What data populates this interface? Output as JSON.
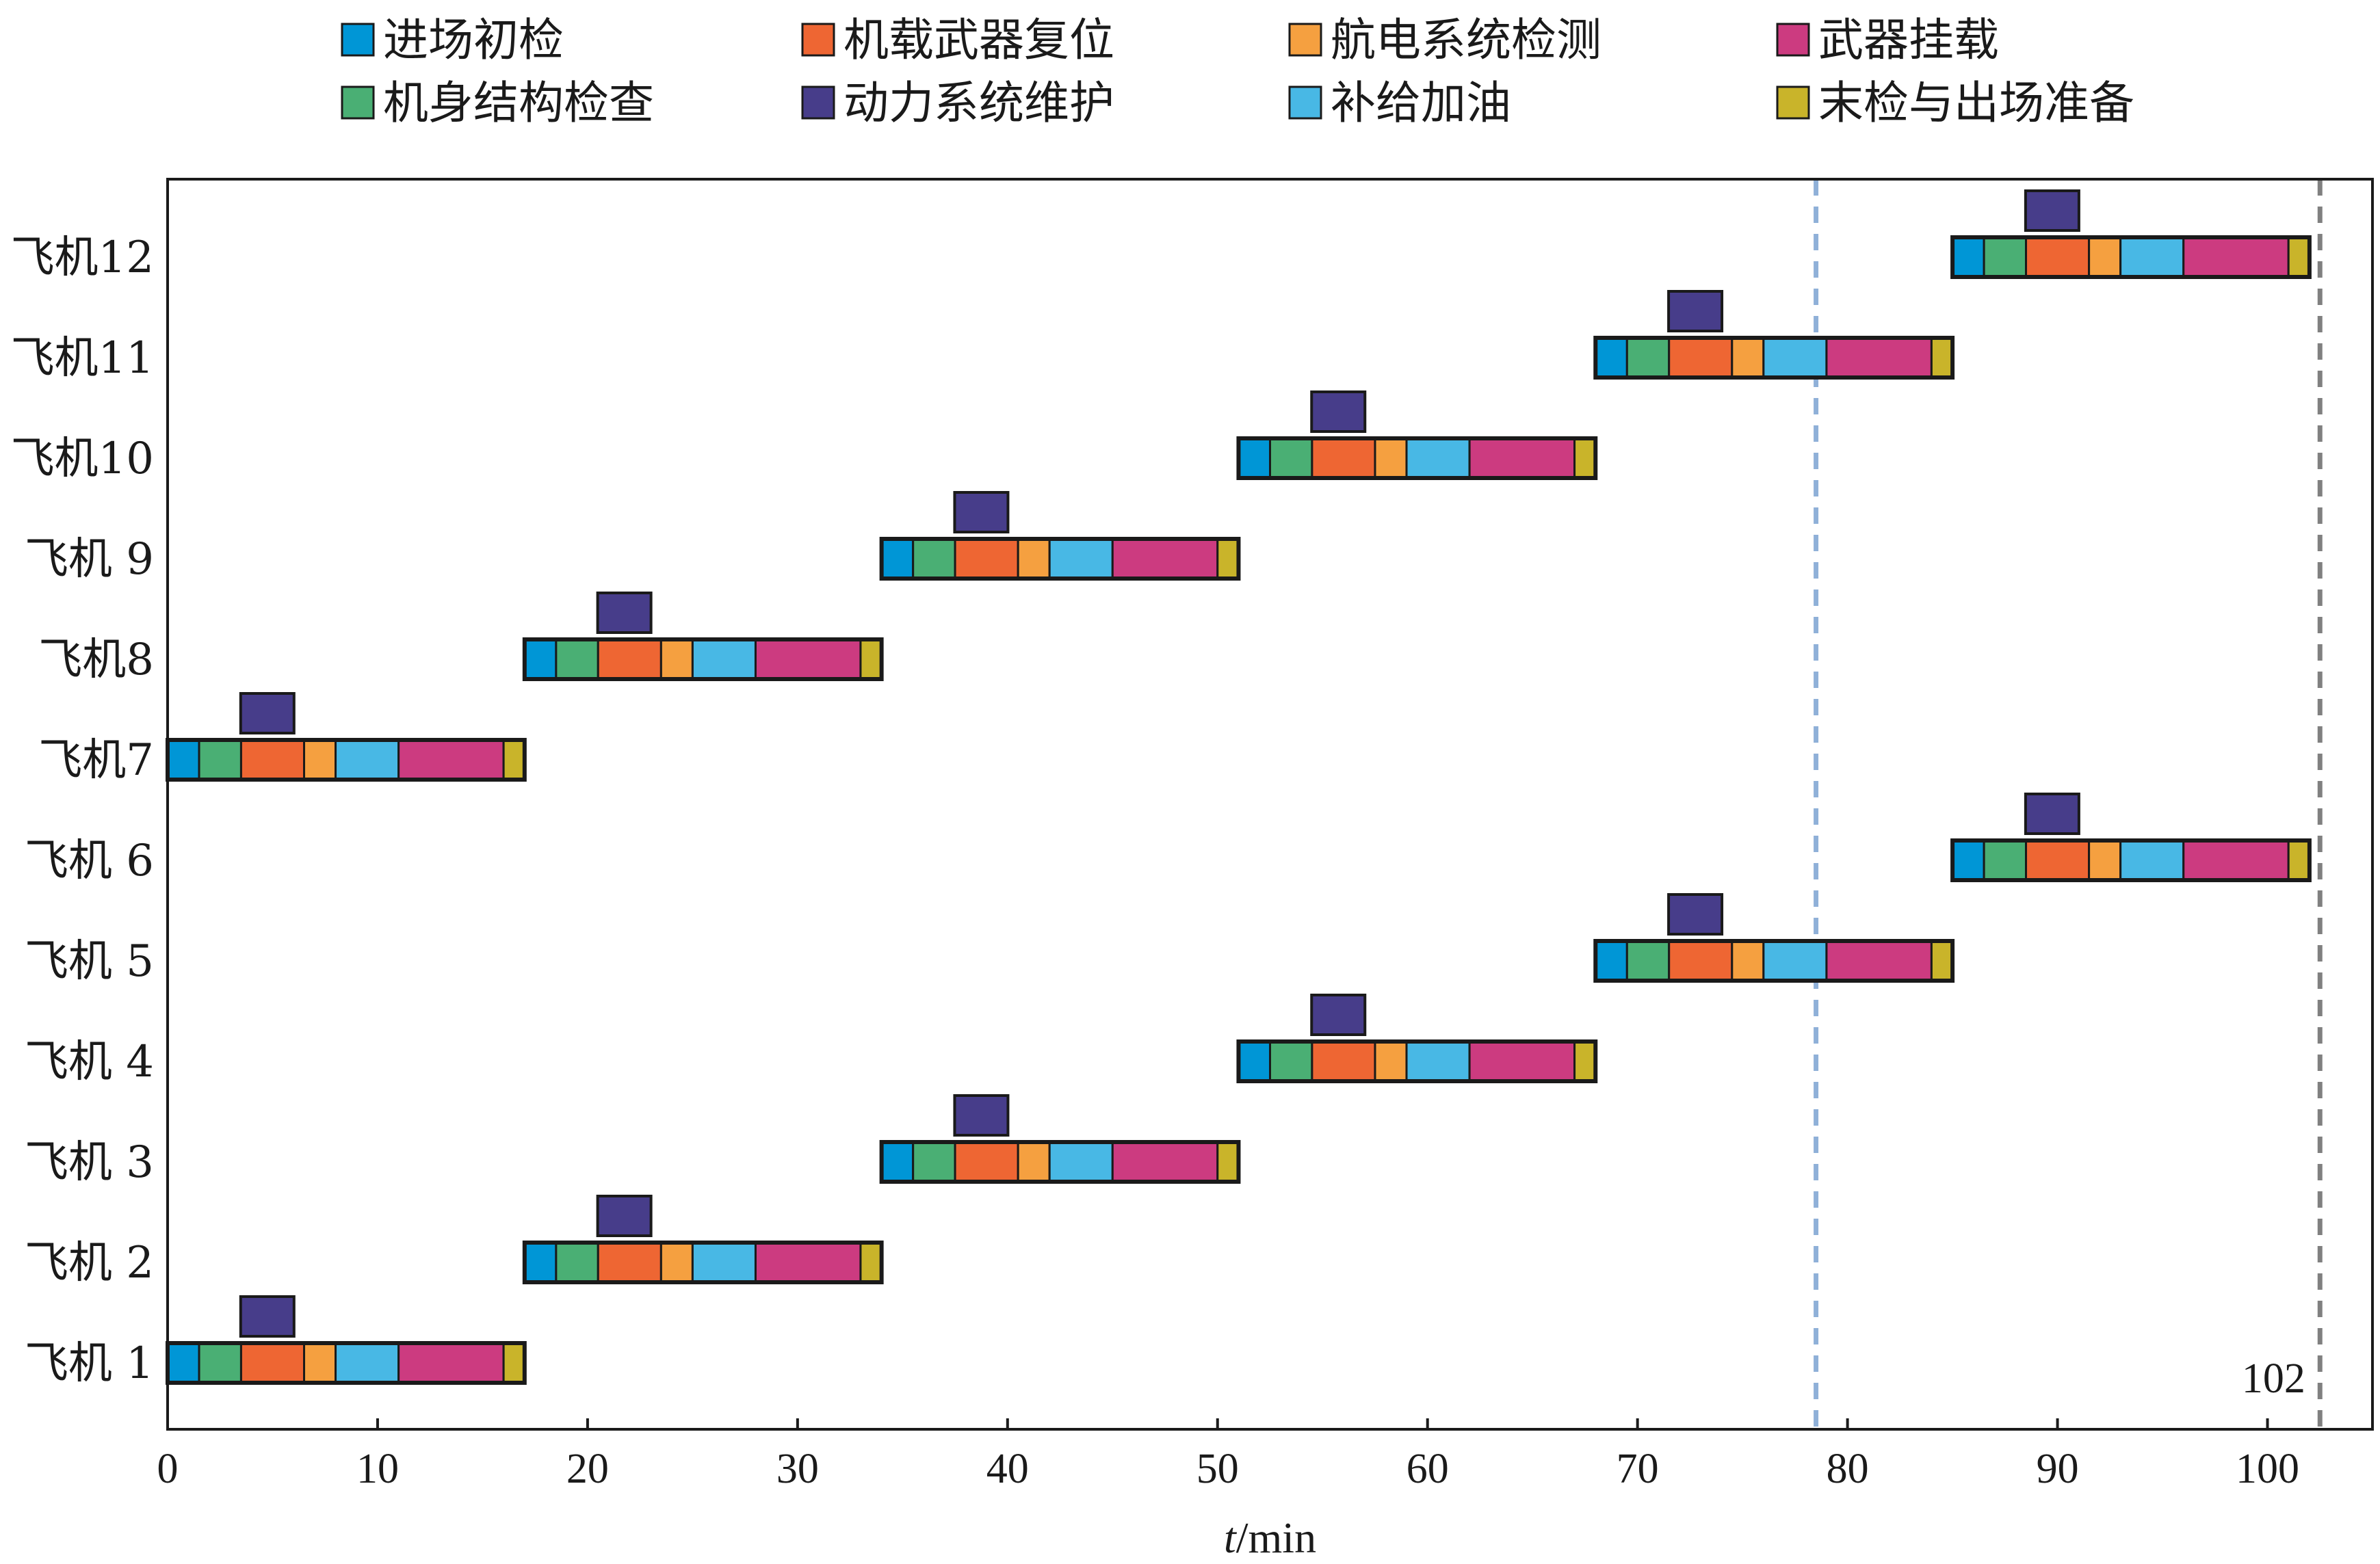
{
  "chart_data": {
    "type": "gantt",
    "xlabel_italic": "t",
    "xlabel_unit": "/min",
    "xlim": [
      0,
      105
    ],
    "xticks": [
      0,
      10,
      20,
      30,
      40,
      50,
      60,
      70,
      80,
      90,
      100
    ],
    "legend": [
      {
        "key": "entry",
        "label": "进场初检",
        "color": "#0096d6"
      },
      {
        "key": "weapon_reset",
        "label": "机载武器复位",
        "color": "#ee6633"
      },
      {
        "key": "avionics",
        "label": "航电系统检测",
        "color": "#f5a040"
      },
      {
        "key": "weapon_mount",
        "label": "武器挂载",
        "color": "#cc3b80"
      },
      {
        "key": "structure",
        "label": "机身结构检查",
        "color": "#4aaf74"
      },
      {
        "key": "power",
        "label": "动力系统维护",
        "color": "#473d8a"
      },
      {
        "key": "refuel",
        "label": "补给加油",
        "color": "#48b8e5"
      },
      {
        "key": "final",
        "label": "末检与出场准备",
        "color": "#c9b42a"
      }
    ],
    "task_template": [
      {
        "key": "entry",
        "start": 0,
        "end": 1.5
      },
      {
        "key": "structure",
        "start": 1.5,
        "end": 3.5
      },
      {
        "key": "weapon_reset",
        "start": 3.5,
        "end": 6.5
      },
      {
        "key": "avionics",
        "start": 6.5,
        "end": 8
      },
      {
        "key": "refuel",
        "start": 8,
        "end": 11
      },
      {
        "key": "weapon_mount",
        "start": 11,
        "end": 16
      },
      {
        "key": "final",
        "start": 16,
        "end": 17
      },
      {
        "key": "power",
        "start": 3.5,
        "end": 6,
        "raised": true
      }
    ],
    "aircraft": [
      {
        "label": "飞机 1",
        "offset": 0
      },
      {
        "label": "飞机 2",
        "offset": 17
      },
      {
        "label": "飞机 3",
        "offset": 34
      },
      {
        "label": "飞机 4",
        "offset": 51
      },
      {
        "label": "飞机 5",
        "offset": 68
      },
      {
        "label": "飞机 6",
        "offset": 85
      },
      {
        "label": "飞机7",
        "offset": 0
      },
      {
        "label": "飞机8",
        "offset": 17
      },
      {
        "label": "飞机 9",
        "offset": 34
      },
      {
        "label": "飞机10",
        "offset": 51
      },
      {
        "label": "飞机11",
        "offset": 68
      },
      {
        "label": "飞机12",
        "offset": 85
      }
    ],
    "vlines": [
      {
        "x": 78.5,
        "color": "#8fb0d8"
      },
      {
        "x": 102.5,
        "color": "#808080"
      }
    ],
    "annotations": [
      {
        "text": "102",
        "x": 102
      }
    ]
  }
}
